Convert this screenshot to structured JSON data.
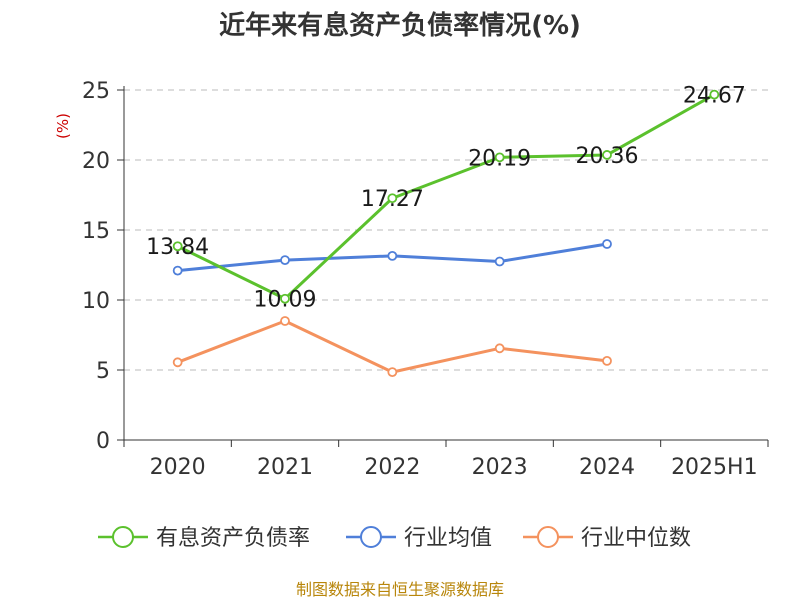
{
  "chart_data": {
    "type": "line",
    "title": "近年来有息资产负债率情况(%)",
    "ylabel": "(%)",
    "categories": [
      "2020",
      "2021",
      "2022",
      "2023",
      "2024",
      "2025H1"
    ],
    "ylim": [
      0,
      25
    ],
    "yticks": [
      "0",
      "5",
      "10",
      "15",
      "20",
      "25"
    ],
    "grid": true,
    "legend": "bottom",
    "series": [
      {
        "name": "有息资产负债率",
        "color": "#5bc12d",
        "values": [
          13.84,
          10.09,
          17.27,
          20.19,
          20.36,
          24.67
        ],
        "labels": [
          "13.84",
          "10.09",
          "17.27",
          "20.19",
          "20.36",
          "24.67"
        ]
      },
      {
        "name": "行业均值",
        "color": "#4f7fd9",
        "values": [
          12.1,
          12.85,
          13.15,
          12.75,
          14.0,
          null
        ]
      },
      {
        "name": "行业中位数",
        "color": "#f4925e",
        "values": [
          5.55,
          8.5,
          4.85,
          6.55,
          5.65,
          null
        ]
      }
    ]
  },
  "source": "制图数据来自恒生聚源数据库"
}
